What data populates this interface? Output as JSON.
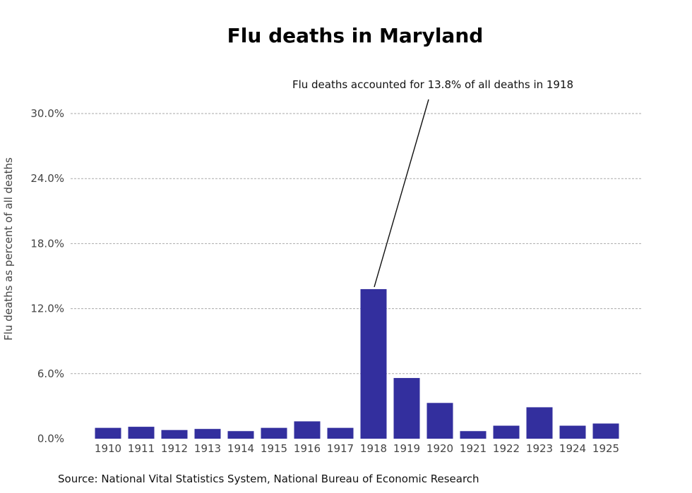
{
  "chart_data": {
    "type": "bar",
    "title": "Flu deaths in Maryland",
    "xlabel": "",
    "ylabel": "Flu deaths as percent of all deaths",
    "categories": [
      "1910",
      "1911",
      "1912",
      "1913",
      "1914",
      "1915",
      "1916",
      "1917",
      "1918",
      "1919",
      "1920",
      "1921",
      "1922",
      "1923",
      "1924",
      "1925"
    ],
    "values": [
      1.0,
      1.1,
      0.8,
      0.9,
      0.7,
      1.0,
      1.6,
      1.0,
      13.8,
      5.6,
      3.3,
      0.7,
      1.2,
      2.9,
      1.2,
      1.4
    ],
    "ylim": [
      0,
      30
    ],
    "yticks": [
      0,
      6,
      12,
      18,
      24,
      30
    ],
    "ytick_labels": [
      "0.0%",
      "6.0%",
      "12.0%",
      "18.0%",
      "24.0%",
      "30.0%"
    ],
    "grid": "horizontal dashed",
    "bar_color": "#332f9e",
    "annotation": {
      "text": "Flu deaths accounted for 13.8% of all deaths in 1918",
      "category": "1918"
    },
    "source": "Source: National Vital Statistics System, National Bureau of Economic Research"
  }
}
